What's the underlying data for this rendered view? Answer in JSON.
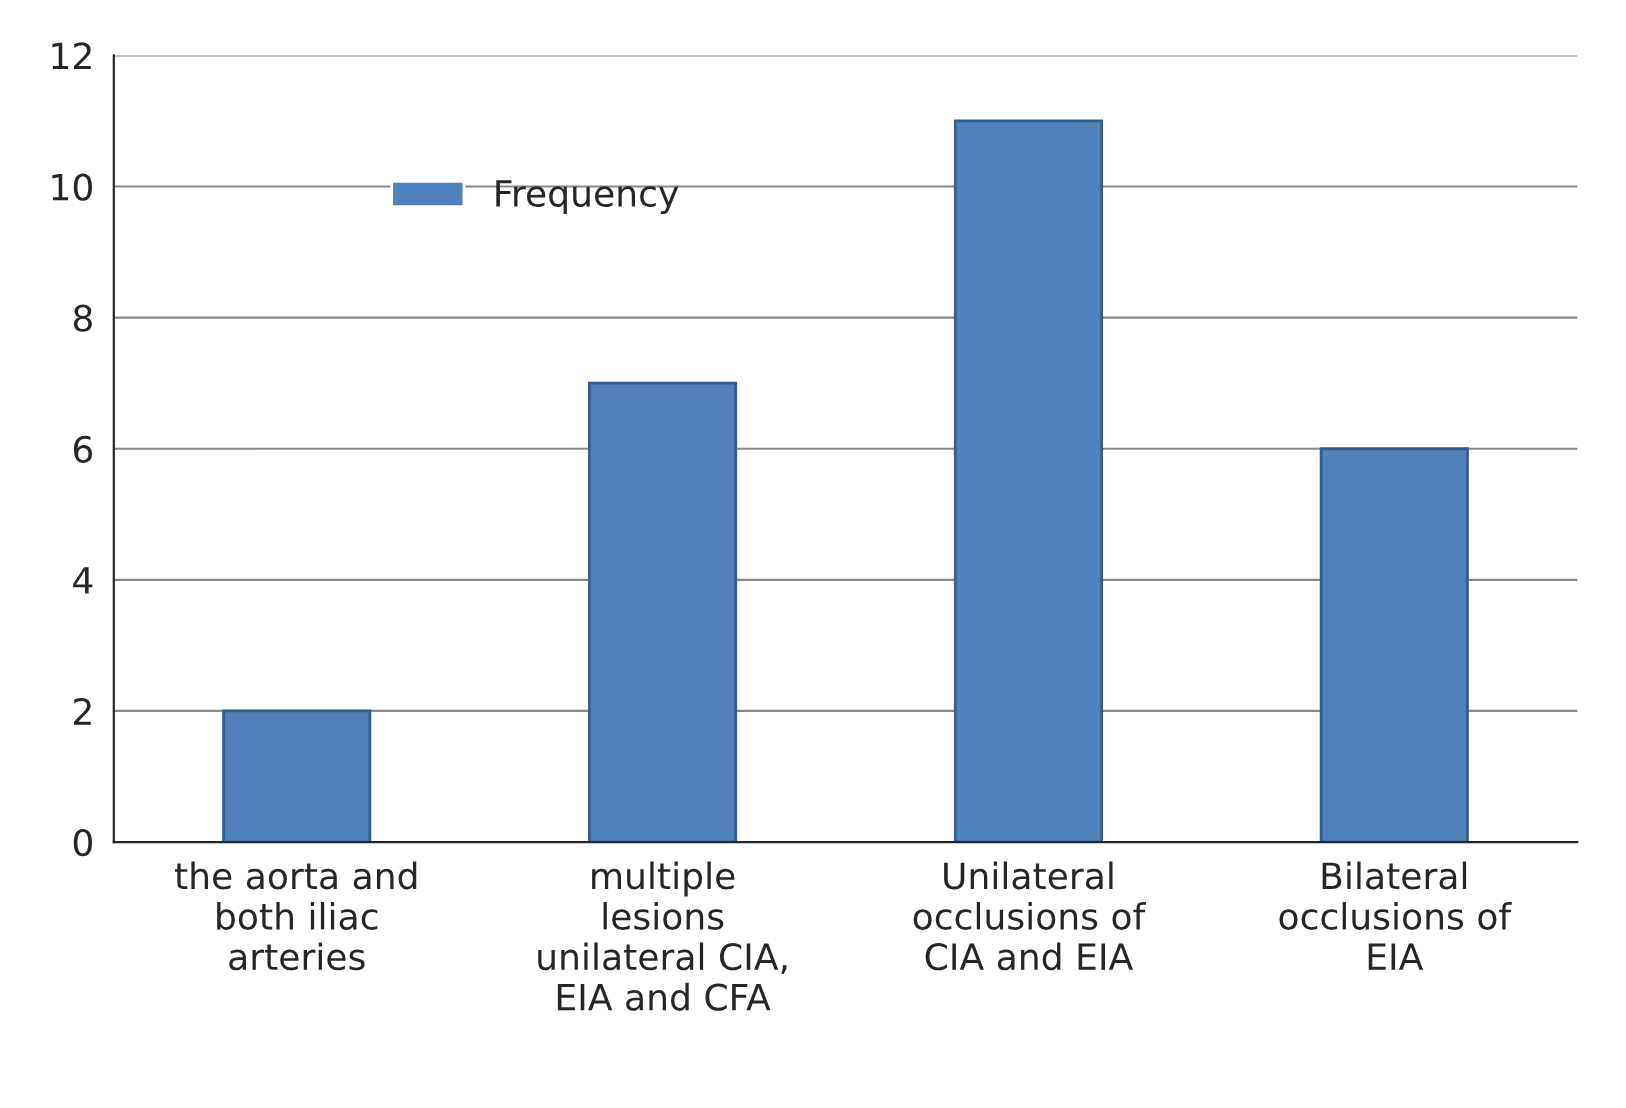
{
  "chart_data": {
    "type": "bar",
    "categories": [
      "the aorta and\nboth iliac\narteries",
      "multiple\nlesions\nunilateral CIA,\nEIA and CFA",
      "Unilateral\nocclusions of\nCIA and EIA",
      "Bilateral\nocclusions of\nEIA"
    ],
    "series": [
      {
        "name": "Frequency",
        "color": "#4f81bd",
        "values": [
          2,
          7,
          11,
          6
        ]
      }
    ],
    "ylim": [
      0,
      12
    ],
    "yticks": [
      0,
      2,
      4,
      6,
      8,
      10,
      12
    ],
    "grid": "y",
    "legend": "top left"
  }
}
